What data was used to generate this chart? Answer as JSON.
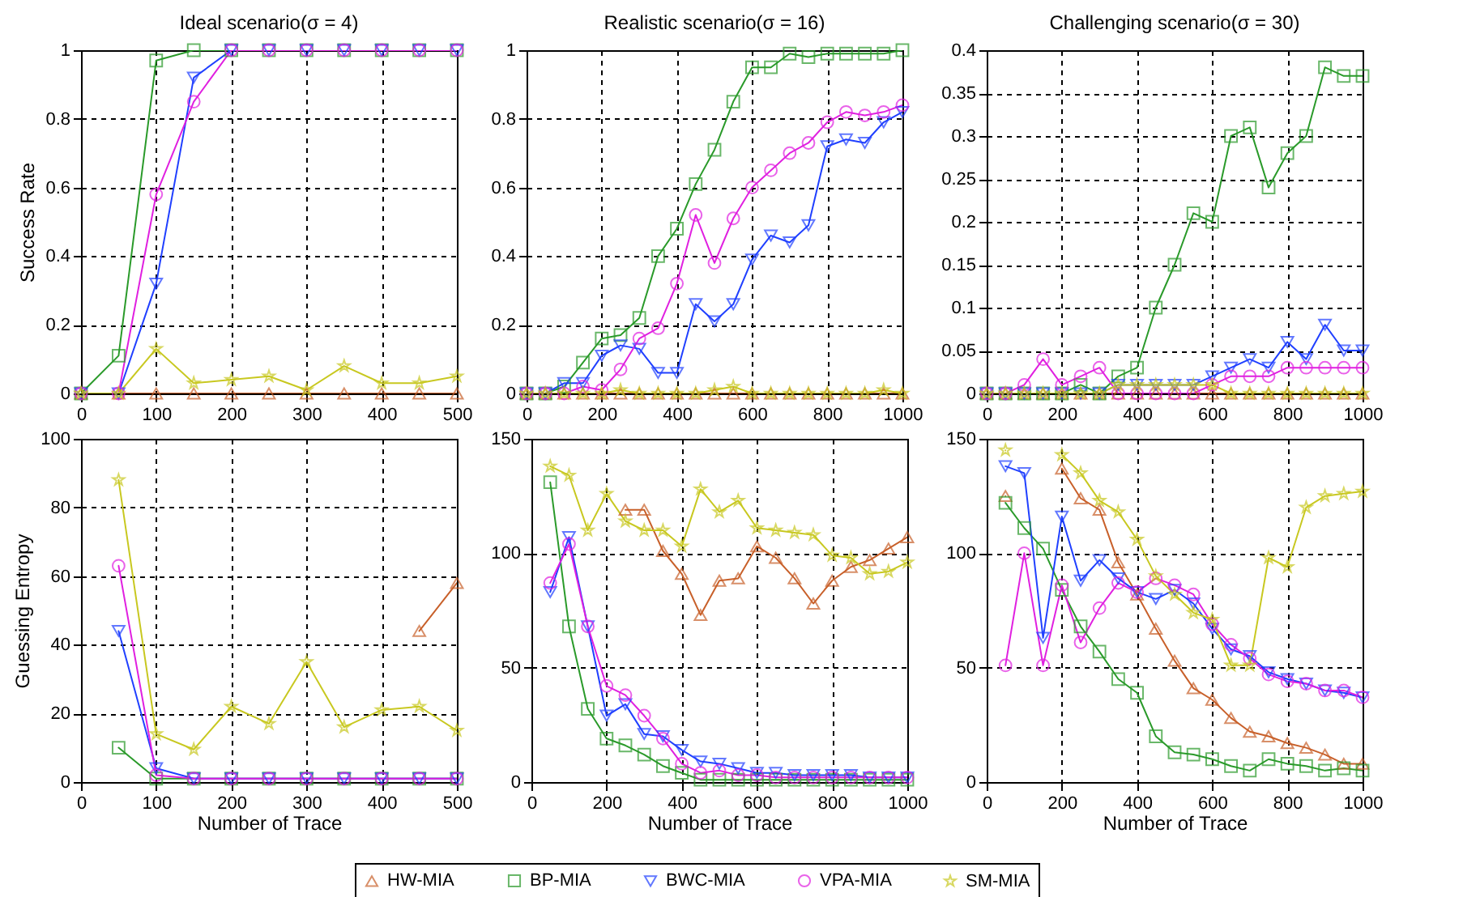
{
  "chart_data": [
    {
      "type": "line",
      "title": "Ideal scenario(σ = 4)",
      "ylabel": "Success Rate",
      "x": [
        0,
        50,
        100,
        150,
        200,
        250,
        300,
        350,
        400,
        450,
        500
      ],
      "xlim": [
        0,
        500
      ],
      "xticks": [
        0,
        100,
        200,
        300,
        400,
        500
      ],
      "ylim": [
        0,
        1
      ],
      "yticks": [
        0,
        0.2,
        0.4,
        0.6,
        0.8,
        1
      ],
      "grid": true,
      "legend": "bottom",
      "series": [
        {
          "name": "HW-MIA",
          "color": "#c8602a",
          "marker": "triangle",
          "values": [
            0,
            0,
            0,
            0,
            0,
            0,
            0,
            0,
            0,
            0,
            0
          ]
        },
        {
          "name": "BP-MIA",
          "color": "#2a9a2a",
          "marker": "square",
          "values": [
            0,
            0.11,
            0.97,
            1,
            1,
            1,
            1,
            1,
            1,
            1,
            1
          ]
        },
        {
          "name": "BWC-MIA",
          "color": "#2040ff",
          "marker": "triangle-down",
          "values": [
            0,
            0,
            0.32,
            0.92,
            1,
            1,
            1,
            1,
            1,
            1,
            1
          ]
        },
        {
          "name": "VPA-MIA",
          "color": "#e020e0",
          "marker": "circle",
          "values": [
            0,
            0,
            0.58,
            0.85,
            1,
            1,
            1,
            1,
            1,
            1,
            1
          ]
        },
        {
          "name": "SM-MIA",
          "color": "#c8c820",
          "marker": "star",
          "values": [
            0,
            0,
            0.13,
            0.03,
            0.04,
            0.05,
            0.01,
            0.08,
            0.03,
            0.03,
            0.05
          ]
        }
      ]
    },
    {
      "type": "line",
      "title": "Realistic scenario(σ = 16)",
      "x": [
        0,
        50,
        100,
        150,
        200,
        250,
        300,
        350,
        400,
        450,
        500,
        550,
        600,
        650,
        700,
        750,
        800,
        850,
        900,
        950,
        1000
      ],
      "xlim": [
        0,
        1000
      ],
      "xticks": [
        0,
        200,
        400,
        600,
        800,
        1000
      ],
      "ylim": [
        0,
        1
      ],
      "yticks": [
        0,
        0.2,
        0.4,
        0.6,
        0.8,
        1
      ],
      "grid": true,
      "legend": "bottom",
      "series": [
        {
          "name": "HW-MIA",
          "color": "#c8602a",
          "marker": "triangle",
          "values": [
            0,
            0,
            0,
            0,
            0,
            0,
            0,
            0,
            0,
            0,
            0,
            0,
            0,
            0,
            0,
            0,
            0,
            0,
            0,
            0,
            0
          ]
        },
        {
          "name": "BP-MIA",
          "color": "#2a9a2a",
          "marker": "square",
          "values": [
            0,
            0,
            0.02,
            0.09,
            0.16,
            0.17,
            0.22,
            0.4,
            0.48,
            0.61,
            0.71,
            0.85,
            0.95,
            0.95,
            0.99,
            0.98,
            0.99,
            0.99,
            0.99,
            0.99,
            1
          ]
        },
        {
          "name": "BWC-MIA",
          "color": "#2040ff",
          "marker": "triangle-down",
          "values": [
            0,
            0,
            0.03,
            0.03,
            0.11,
            0.14,
            0.13,
            0.06,
            0.06,
            0.26,
            0.21,
            0.26,
            0.39,
            0.46,
            0.44,
            0.49,
            0.72,
            0.74,
            0.73,
            0.79,
            0.82
          ]
        },
        {
          "name": "VPA-MIA",
          "color": "#e020e0",
          "marker": "circle",
          "values": [
            0,
            0,
            0,
            0.02,
            0.01,
            0.07,
            0.16,
            0.19,
            0.32,
            0.52,
            0.38,
            0.51,
            0.6,
            0.65,
            0.7,
            0.73,
            0.79,
            0.82,
            0.81,
            0.82,
            0.84
          ]
        },
        {
          "name": "SM-MIA",
          "color": "#c8c820",
          "marker": "star",
          "values": [
            0,
            0,
            0,
            0,
            0,
            0.01,
            0,
            0,
            0,
            0,
            0.01,
            0.02,
            0,
            0,
            0,
            0,
            0,
            0,
            0,
            0.01,
            0
          ]
        }
      ]
    },
    {
      "type": "line",
      "title": "Challenging scenario(σ = 30)",
      "x": [
        0,
        50,
        100,
        150,
        200,
        250,
        300,
        350,
        400,
        450,
        500,
        550,
        600,
        650,
        700,
        750,
        800,
        850,
        900,
        950,
        1000
      ],
      "xlim": [
        0,
        1000
      ],
      "xticks": [
        0,
        200,
        400,
        600,
        800,
        1000
      ],
      "ylim": [
        0,
        0.4
      ],
      "yticks": [
        0,
        0.05,
        0.1,
        0.15,
        0.2,
        0.25,
        0.3,
        0.35,
        0.4
      ],
      "grid": true,
      "legend": "bottom",
      "series": [
        {
          "name": "HW-MIA",
          "color": "#c8602a",
          "marker": "triangle",
          "values": [
            0,
            0,
            0,
            0,
            0,
            0,
            0,
            0,
            0,
            0,
            0,
            0,
            0,
            0,
            0,
            0,
            0,
            0,
            0,
            0,
            0
          ]
        },
        {
          "name": "BP-MIA",
          "color": "#2a9a2a",
          "marker": "square",
          "values": [
            0,
            0,
            0,
            0,
            0,
            0.01,
            0,
            0.02,
            0.03,
            0.1,
            0.15,
            0.21,
            0.2,
            0.3,
            0.31,
            0.24,
            0.28,
            0.3,
            0.38,
            0.37,
            0.37
          ]
        },
        {
          "name": "BWC-MIA",
          "color": "#2040ff",
          "marker": "triangle-down",
          "values": [
            0,
            0,
            0,
            0,
            0,
            0,
            0,
            0.01,
            0.01,
            0.01,
            0.01,
            0.01,
            0.02,
            0.03,
            0.04,
            0.03,
            0.06,
            0.04,
            0.08,
            0.05,
            0.05
          ]
        },
        {
          "name": "VPA-MIA",
          "color": "#e020e0",
          "marker": "circle",
          "values": [
            0,
            0,
            0.01,
            0.04,
            0.01,
            0.02,
            0.03,
            0,
            0,
            0,
            0,
            0,
            0.01,
            0.02,
            0.02,
            0.02,
            0.03,
            0.03,
            0.03,
            0.03,
            0.03
          ]
        },
        {
          "name": "SM-MIA",
          "color": "#c8c820",
          "marker": "star",
          "values": [
            0,
            0,
            0,
            0,
            0,
            0,
            0,
            0.01,
            0.01,
            0.01,
            0.01,
            0.01,
            0.01,
            0,
            0,
            0,
            0,
            0,
            0,
            0,
            0
          ]
        }
      ]
    },
    {
      "type": "line",
      "xlabel": "Number of Trace",
      "ylabel": "Guessing Entropy",
      "x": [
        50,
        100,
        150,
        200,
        250,
        300,
        350,
        400,
        450,
        500
      ],
      "xlim": [
        0,
        500
      ],
      "xticks": [
        0,
        100,
        200,
        300,
        400,
        500
      ],
      "ylim": [
        0,
        100
      ],
      "yticks": [
        0,
        20,
        40,
        60,
        80,
        100
      ],
      "grid": true,
      "legend": "bottom",
      "series": [
        {
          "name": "HW-MIA",
          "color": "#c8602a",
          "marker": "triangle",
          "values": [
            null,
            null,
            null,
            null,
            null,
            null,
            null,
            null,
            44,
            58
          ]
        },
        {
          "name": "BP-MIA",
          "color": "#2a9a2a",
          "marker": "square",
          "values": [
            10,
            1,
            1,
            1,
            1,
            1,
            1,
            1,
            1,
            1
          ]
        },
        {
          "name": "BWC-MIA",
          "color": "#2040ff",
          "marker": "triangle-down",
          "values": [
            44,
            4,
            1,
            1,
            1,
            1,
            1,
            1,
            1,
            1
          ]
        },
        {
          "name": "VPA-MIA",
          "color": "#e020e0",
          "marker": "circle",
          "values": [
            63,
            2,
            1,
            1,
            1,
            1,
            1,
            1,
            1,
            1
          ]
        },
        {
          "name": "SM-MIA",
          "color": "#c8c820",
          "marker": "star",
          "values": [
            88,
            14,
            9.5,
            22,
            17,
            35,
            16,
            21,
            22,
            15
          ]
        }
      ]
    },
    {
      "type": "line",
      "xlabel": "Number of Trace",
      "x": [
        50,
        100,
        150,
        200,
        250,
        300,
        350,
        400,
        450,
        500,
        550,
        600,
        650,
        700,
        750,
        800,
        850,
        900,
        950,
        1000
      ],
      "xlim": [
        0,
        1000
      ],
      "xticks": [
        0,
        200,
        400,
        600,
        800,
        1000
      ],
      "ylim": [
        0,
        150
      ],
      "yticks": [
        0,
        50,
        100,
        150
      ],
      "grid": true,
      "legend": "bottom",
      "series": [
        {
          "name": "HW-MIA",
          "color": "#c8602a",
          "marker": "triangle",
          "values": [
            null,
            null,
            null,
            null,
            119,
            119,
            101,
            91,
            73,
            88,
            89,
            103,
            98,
            89,
            78,
            88,
            94,
            97,
            102,
            107
          ]
        },
        {
          "name": "BP-MIA",
          "color": "#2a9a2a",
          "marker": "square",
          "values": [
            131,
            68,
            32,
            19,
            16,
            12,
            7,
            4,
            1,
            1,
            1,
            1,
            1,
            1,
            1,
            1,
            1,
            1,
            1,
            1
          ]
        },
        {
          "name": "BWC-MIA",
          "color": "#2040ff",
          "marker": "triangle-down",
          "values": [
            83,
            107,
            68,
            29,
            34,
            21,
            20,
            14,
            9,
            8,
            6,
            4,
            4,
            3,
            3,
            3,
            3,
            2,
            2,
            2
          ]
        },
        {
          "name": "VPA-MIA",
          "color": "#e020e0",
          "marker": "circle",
          "values": [
            87,
            104,
            68,
            42,
            38,
            29,
            19,
            8,
            4,
            5,
            3,
            3,
            2,
            2,
            2,
            2,
            2,
            2,
            2,
            2
          ]
        },
        {
          "name": "SM-MIA",
          "color": "#c8c820",
          "marker": "star",
          "values": [
            138,
            134,
            110,
            126,
            114,
            110,
            110,
            103,
            128,
            118,
            123,
            111,
            110,
            109,
            108,
            99,
            98,
            91,
            92,
            96
          ]
        }
      ]
    },
    {
      "type": "line",
      "xlabel": "Number of Trace",
      "x": [
        50,
        100,
        150,
        200,
        250,
        300,
        350,
        400,
        450,
        500,
        550,
        600,
        650,
        700,
        750,
        800,
        850,
        900,
        950,
        1000
      ],
      "xlim": [
        0,
        1000
      ],
      "xticks": [
        0,
        200,
        400,
        600,
        800,
        1000
      ],
      "ylim": [
        0,
        150
      ],
      "yticks": [
        0,
        50,
        100,
        150
      ],
      "grid": true,
      "legend": "bottom",
      "series": [
        {
          "name": "HW-MIA",
          "color": "#c8602a",
          "marker": "triangle",
          "values": [
            125,
            null,
            null,
            137,
            124,
            119,
            96,
            82,
            67,
            53,
            41,
            36,
            28,
            22,
            20,
            17,
            15,
            12,
            8,
            8
          ]
        },
        {
          "name": "BP-MIA",
          "color": "#2a9a2a",
          "marker": "square",
          "values": [
            122,
            111,
            102,
            84,
            68,
            57,
            45,
            39,
            20,
            13,
            12,
            10,
            7,
            5,
            10,
            8,
            7,
            5,
            6,
            5
          ]
        },
        {
          "name": "BWC-MIA",
          "color": "#2040ff",
          "marker": "triangle-down",
          "values": [
            138,
            135,
            63,
            116,
            88,
            97,
            89,
            83,
            80,
            84,
            78,
            67,
            58,
            55,
            48,
            45,
            43,
            40,
            39,
            37
          ]
        },
        {
          "name": "VPA-MIA",
          "color": "#e020e0",
          "marker": "circle",
          "values": [
            51,
            100,
            51,
            86,
            61,
            76,
            87,
            83,
            89,
            86,
            82,
            69,
            60,
            54,
            47,
            44,
            43,
            40,
            40,
            37
          ]
        },
        {
          "name": "SM-MIA",
          "color": "#c8c820",
          "marker": "star",
          "values": [
            145,
            null,
            null,
            143,
            135,
            123,
            118,
            106,
            90,
            82,
            74,
            71,
            51,
            51,
            98,
            94,
            120,
            125,
            126,
            127
          ]
        }
      ]
    }
  ]
}
